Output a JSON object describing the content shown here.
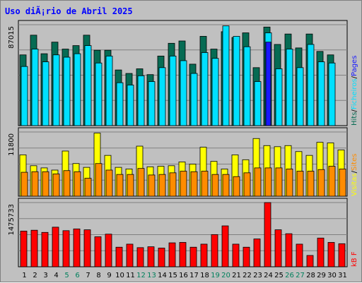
{
  "title": "Uso diÃ¡rio de Abril 2025",
  "chart_data": [
    {
      "type": "bar",
      "panel": "top",
      "x": [
        "1",
        "2",
        "3",
        "4",
        "5",
        "6",
        "7",
        "8",
        "9",
        "10",
        "11",
        "12",
        "13",
        "14",
        "15",
        "16",
        "17",
        "18",
        "19",
        "20",
        "21",
        "22",
        "23",
        "24",
        "25",
        "26",
        "27",
        "28",
        "29",
        "30",
        "31"
      ],
      "weekend_days": [
        "5",
        "6",
        "12",
        "13",
        "19",
        "20",
        "26",
        "27"
      ],
      "ymax_label": "87015",
      "ylim": [
        0,
        87015
      ],
      "grid": true,
      "series": [
        {
          "name": "Hits",
          "color": "#066b53",
          "values": [
            61000,
            78000,
            62000,
            72000,
            66000,
            69000,
            78000,
            65000,
            65000,
            48000,
            45000,
            49000,
            44000,
            60000,
            71000,
            73000,
            53000,
            77000,
            66000,
            81000,
            76000,
            80000,
            50000,
            85000,
            70000,
            79000,
            67000,
            79000,
            64000,
            61000,
            0
          ]
        },
        {
          "name": "Ficheiros",
          "color": "#00e0ff",
          "values": [
            51000,
            66000,
            55000,
            61000,
            59000,
            62000,
            69000,
            54000,
            60000,
            37000,
            35000,
            43000,
            38000,
            50000,
            60000,
            56000,
            45000,
            63000,
            58000,
            86000,
            77000,
            68000,
            38000,
            80000,
            49000,
            66000,
            50000,
            70000,
            55000,
            54000,
            0
          ]
        },
        {
          "name": "Pages",
          "color": "#1818ff",
          "values": [
            0,
            0,
            0,
            0,
            0,
            0,
            0,
            0,
            0,
            0,
            0,
            0,
            0,
            0,
            0,
            0,
            0,
            0,
            0,
            0,
            0,
            0,
            0,
            72000,
            0,
            0,
            0,
            0,
            0,
            0,
            0
          ]
        }
      ]
    },
    {
      "type": "bar",
      "panel": "middle",
      "x": [
        "1",
        "2",
        "3",
        "4",
        "5",
        "6",
        "7",
        "8",
        "9",
        "10",
        "11",
        "12",
        "13",
        "14",
        "15",
        "16",
        "17",
        "18",
        "19",
        "20",
        "21",
        "22",
        "23",
        "24",
        "25",
        "26",
        "27",
        "28",
        "29",
        "30",
        "31"
      ],
      "ymax_label": "11800",
      "ylim": [
        0,
        11800
      ],
      "grid": true,
      "series": [
        {
          "name": "Visitas",
          "color": "#ffff00",
          "values": [
            7600,
            5600,
            5200,
            4800,
            8300,
            6000,
            5300,
            11600,
            7500,
            5300,
            5000,
            9200,
            5400,
            5500,
            5600,
            6300,
            5900,
            9000,
            6400,
            5000,
            7600,
            6700,
            10600,
            9300,
            9100,
            9300,
            8200,
            7500,
            9900,
            9800,
            8500
          ]
        },
        {
          "name": "Sites",
          "color": "#ff8c00",
          "values": [
            4400,
            4500,
            4500,
            4100,
            4700,
            4500,
            3300,
            6000,
            4800,
            4000,
            4000,
            5100,
            3900,
            4000,
            4300,
            4600,
            4500,
            4600,
            4000,
            4000,
            3600,
            4300,
            5200,
            5200,
            5200,
            5000,
            4600,
            4600,
            4900,
            5500,
            5000
          ]
        }
      ]
    },
    {
      "type": "bar",
      "panel": "bottom",
      "x": [
        "1",
        "2",
        "3",
        "4",
        "5",
        "6",
        "7",
        "8",
        "9",
        "10",
        "11",
        "12",
        "13",
        "14",
        "15",
        "16",
        "17",
        "18",
        "19",
        "20",
        "21",
        "22",
        "23",
        "24",
        "25",
        "26",
        "27",
        "28",
        "29",
        "30",
        "31"
      ],
      "ymax_label": "1475733",
      "ylim": [
        0,
        1475733
      ],
      "grid": true,
      "series": [
        {
          "name": "kB F",
          "color": "#ff0000",
          "values": [
            820000,
            840000,
            790000,
            910000,
            830000,
            870000,
            850000,
            690000,
            750000,
            450000,
            520000,
            440000,
            460000,
            430000,
            550000,
            560000,
            450000,
            520000,
            740000,
            940000,
            520000,
            450000,
            640000,
            1475000,
            850000,
            760000,
            520000,
            260000,
            660000,
            560000,
            530000
          ]
        }
      ]
    }
  ],
  "legends": {
    "top": [
      {
        "text": "Hits",
        "color": "#066b53"
      },
      {
        "text": "/",
        "color": "#000000"
      },
      {
        "text": "Ficheiros",
        "color": "#00e0ff"
      },
      {
        "text": "/",
        "color": "#000000"
      },
      {
        "text": "Pages",
        "color": "#1818ff"
      }
    ],
    "middle": [
      {
        "text": "Visitas",
        "color": "#ffff00"
      },
      {
        "text": "/",
        "color": "#000000"
      },
      {
        "text": "Sites",
        "color": "#ff8c00"
      }
    ],
    "bottom": [
      {
        "text": "kB F",
        "color": "#ff0000"
      }
    ]
  },
  "colors": {
    "weekend_label": "#00805c",
    "weekday_label": "#000000",
    "background": "#c0c0c0"
  }
}
